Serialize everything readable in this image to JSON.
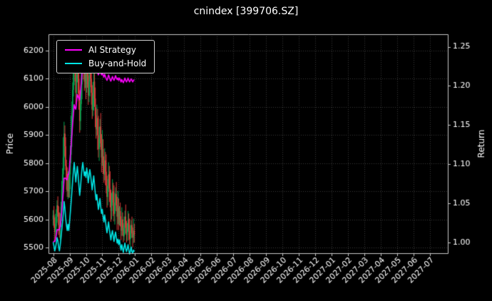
{
  "chart_data": {
    "type": "candlestick_with_lines",
    "title": "cnindex [399706.SZ]",
    "ylabel_left": "Price",
    "ylabel_right": "Return",
    "background_color": "#000000",
    "text_color": "#ffffff",
    "grid_color": "#3a3a3a",
    "spine_color": "#c8c8c8",
    "candle_up_color": "#00a650",
    "candle_down_color": "#e23b3b",
    "legend_position": "upper left",
    "grid": "dotted",
    "x_tick_labels": [
      "2025-08",
      "2025-09",
      "2025-10",
      "2025-11",
      "2025-12",
      "2026-01",
      "2026-02",
      "2026-03",
      "2026-04",
      "2026-05",
      "2026-06",
      "2026-07",
      "2026-08",
      "2026-09",
      "2026-10",
      "2026-11",
      "2026-12",
      "2027-01",
      "2027-02",
      "2027-03",
      "2027-04",
      "2027-05",
      "2027-06",
      "2027-07"
    ],
    "days_per_month": 21,
    "total_days": 504,
    "price_ticks": [
      5500,
      5600,
      5700,
      5800,
      5900,
      6000,
      6100,
      6200
    ],
    "return_ticks": [
      1.0,
      1.05,
      1.1,
      1.15,
      1.2,
      1.25
    ],
    "ylim_price": [
      5480,
      6258
    ],
    "ylim_return": [
      0.986,
      1.266
    ],
    "candles": {
      "open": [
        5600,
        5615,
        5585,
        5555,
        5575,
        5610,
        5650,
        5625,
        5580,
        5555,
        5595,
        5645,
        5705,
        5760,
        5820,
        5905,
        5860,
        5790,
        5740,
        5700,
        5745,
        5700,
        5760,
        5830,
        5900,
        5980,
        6060,
        6130,
        6190,
        6120,
        6050,
        6110,
        6160,
        6100,
        6020,
        5950,
        6010,
        6080,
        6150,
        6190,
        6140,
        6090,
        6120,
        6080,
        6150,
        6110,
        6040,
        6090,
        6140,
        6100,
        6050,
        5990,
        6040,
        6090,
        6030,
        5970,
        5920,
        5960,
        5900,
        5850,
        5890,
        5930,
        5870,
        5820,
        5850,
        5800,
        5760,
        5810,
        5770,
        5720,
        5680,
        5720,
        5760,
        5710,
        5670,
        5630,
        5670,
        5700,
        5660,
        5620,
        5660,
        5690,
        5650,
        5610,
        5640,
        5600,
        5630,
        5590,
        5560,
        5600,
        5570,
        5540,
        5580,
        5610,
        5570,
        5545,
        5570,
        5600,
        5560,
        5530,
        5555,
        5580,
        5550,
        5535,
        5560
      ],
      "high": [
        5633,
        5647,
        5607,
        5620,
        5636,
        5668,
        5682,
        5647,
        5625,
        5621,
        5663,
        5737,
        5782,
        5892,
        5947,
        5934,
        5892,
        5812,
        5785,
        5771,
        5763,
        5808,
        5863,
        5968,
        6019,
        6087,
        6178,
        6223,
        6235,
        6159,
        6137,
        6208,
        6193,
        6168,
        6059,
        6037,
        6128,
        6183,
        6238,
        6229,
        6167,
        6168,
        6153,
        6218,
        6189,
        6137,
        6138,
        6173,
        6208,
        6139,
        6077,
        6088,
        6123,
        6158,
        6069,
        5997,
        6008,
        5993,
        5968,
        5929,
        5957,
        5978,
        5903,
        5918,
        5885,
        5824,
        5853,
        5840,
        5831,
        5755,
        5744,
        5803,
        5790,
        5771,
        5705,
        5694,
        5743,
        5730,
        5721,
        5695,
        5714,
        5733,
        5680,
        5701,
        5675,
        5647,
        5660,
        5611,
        5643,
        5625,
        5587,
        5610,
        5631,
        5653,
        5595,
        5587,
        5630,
        5621,
        5603,
        5580,
        5597,
        5610,
        5571,
        5603,
        5585
      ],
      "low": [
        5578,
        5570,
        5520,
        5535,
        5547,
        5588,
        5610,
        5545,
        5535,
        5527,
        5573,
        5630,
        5670,
        5728,
        5775,
        5825,
        5775,
        5705,
        5680,
        5672,
        5678,
        5677,
        5707,
        5800,
        5858,
        5947,
        6037,
        6077,
        6090,
        6008,
        6017,
        6087,
        6047,
        5990,
        5908,
        5917,
        5987,
        6027,
        6120,
        6098,
        6057,
        6067,
        6027,
        6050,
        6068,
        6007,
        6017,
        6037,
        6070,
        6008,
        5957,
        5967,
        5987,
        6000,
        5928,
        5887,
        5897,
        5847,
        5820,
        5808,
        5857,
        5847,
        5767,
        5790,
        5762,
        5730,
        5739,
        5722,
        5693,
        5642,
        5650,
        5699,
        5662,
        5643,
        5592,
        5600,
        5649,
        5612,
        5593,
        5582,
        5630,
        5629,
        5562,
        5583,
        5562,
        5579,
        5575,
        5526,
        5541,
        5543,
        5519,
        5525,
        5546,
        5551,
        5518,
        5524,
        5555,
        5526,
        5511,
        5503,
        5534,
        5535,
        5501,
        5516,
        5518
      ],
      "close": [
        5615,
        5585,
        5555,
        5575,
        5610,
        5650,
        5625,
        5580,
        5555,
        5595,
        5645,
        5705,
        5760,
        5820,
        5905,
        5860,
        5790,
        5740,
        5700,
        5745,
        5700,
        5760,
        5830,
        5900,
        5980,
        6060,
        6130,
        6190,
        6120,
        6050,
        6110,
        6160,
        6100,
        6020,
        5950,
        6010,
        6080,
        6150,
        6190,
        6140,
        6090,
        6120,
        6080,
        6150,
        6110,
        6040,
        6090,
        6140,
        6100,
        6050,
        5990,
        6040,
        6090,
        6030,
        5970,
        5920,
        5960,
        5900,
        5850,
        5890,
        5930,
        5870,
        5820,
        5850,
        5800,
        5760,
        5810,
        5770,
        5720,
        5680,
        5720,
        5760,
        5710,
        5670,
        5630,
        5670,
        5700,
        5660,
        5620,
        5660,
        5690,
        5650,
        5610,
        5640,
        5600,
        5630,
        5590,
        5560,
        5600,
        5570,
        5540,
        5580,
        5610,
        5570,
        5545,
        5570,
        5600,
        5560,
        5530,
        5555,
        5580,
        5550,
        5535,
        5560,
        5545
      ]
    },
    "series": [
      {
        "name": "AI Strategy",
        "color": "#ff00ff",
        "axis": "return",
        "values": [
          1.0,
          1.001,
          1.001,
          1.004,
          1.009,
          1.016,
          1.016,
          1.016,
          1.016,
          1.02,
          1.028,
          1.04,
          1.052,
          1.065,
          1.082,
          1.082,
          1.082,
          1.08,
          1.08,
          1.087,
          1.087,
          1.097,
          1.11,
          1.123,
          1.138,
          1.152,
          1.165,
          1.176,
          1.172,
          1.17,
          1.18,
          1.189,
          1.186,
          1.184,
          1.182,
          1.192,
          1.204,
          1.216,
          1.224,
          1.22,
          1.216,
          1.221,
          1.218,
          1.228,
          1.224,
          1.218,
          1.224,
          1.23,
          1.226,
          1.222,
          1.218,
          1.222,
          1.228,
          1.224,
          1.22,
          1.217,
          1.22,
          1.217,
          1.214,
          1.217,
          1.221,
          1.218,
          1.214,
          1.217,
          1.214,
          1.211,
          1.215,
          1.212,
          1.209,
          1.207,
          1.21,
          1.214,
          1.211,
          1.208,
          1.206,
          1.209,
          1.212,
          1.209,
          1.207,
          1.21,
          1.213,
          1.21,
          1.208,
          1.21,
          1.207,
          1.21,
          1.208,
          1.205,
          1.208,
          1.206,
          1.204,
          1.207,
          1.21,
          1.207,
          1.205,
          1.207,
          1.21,
          1.207,
          1.205,
          1.207,
          1.209,
          1.207,
          1.205,
          1.207,
          1.208
        ]
      },
      {
        "name": "Buy-and-Hold",
        "color": "#00e5e5",
        "axis": "return",
        "values": [
          1.0,
          0.995,
          0.989,
          0.993,
          0.999,
          1.006,
          1.002,
          0.994,
          0.989,
          0.996,
          1.005,
          1.016,
          1.026,
          1.037,
          1.052,
          1.044,
          1.031,
          1.022,
          1.015,
          1.023,
          1.015,
          1.026,
          1.038,
          1.051,
          1.065,
          1.079,
          1.092,
          1.102,
          1.09,
          1.077,
          1.088,
          1.097,
          1.086,
          1.072,
          1.06,
          1.07,
          1.083,
          1.095,
          1.102,
          1.093,
          1.085,
          1.09,
          1.083,
          1.095,
          1.088,
          1.076,
          1.085,
          1.093,
          1.086,
          1.077,
          1.067,
          1.076,
          1.085,
          1.074,
          1.063,
          1.054,
          1.061,
          1.051,
          1.042,
          1.049,
          1.056,
          1.045,
          1.037,
          1.042,
          1.033,
          1.026,
          1.035,
          1.028,
          1.019,
          1.012,
          1.019,
          1.026,
          1.017,
          1.01,
          1.003,
          1.01,
          1.015,
          1.008,
          1.001,
          1.008,
          1.013,
          1.006,
          0.999,
          1.004,
          0.997,
          1.003,
          0.996,
          0.99,
          0.997,
          0.992,
          0.987,
          0.994,
          0.999,
          0.992,
          0.988,
          0.992,
          0.997,
          0.99,
          0.985,
          0.989,
          0.994,
          0.988,
          0.986,
          0.99,
          0.988
        ]
      }
    ]
  }
}
